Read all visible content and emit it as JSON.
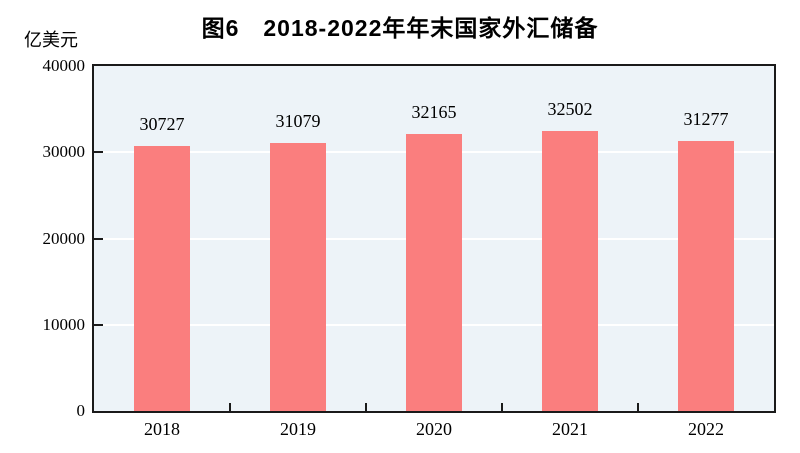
{
  "figure": {
    "title": "图6　2018-2022年年末国家外汇储备",
    "unit_label": "亿美元"
  },
  "chart_data": {
    "type": "bar",
    "title": "图6　2018-2022年年末国家外汇储备",
    "xlabel": "",
    "ylabel": "亿美元",
    "categories": [
      "2018",
      "2019",
      "2020",
      "2021",
      "2022"
    ],
    "values": [
      30727,
      31079,
      32165,
      32502,
      31277
    ],
    "data_labels": [
      "30727",
      "31079",
      "32165",
      "32502",
      "31277"
    ],
    "ylim": [
      0,
      40000
    ],
    "yticks": [
      0,
      10000,
      20000,
      30000,
      40000
    ],
    "ytick_labels": [
      "0",
      "10000",
      "20000",
      "30000",
      "40000"
    ],
    "grid": "horizontal gridlines at each ytick, white, drawn behind bars",
    "legend_position": "none",
    "colors": {
      "bar": "#FA7E7E",
      "plot_background": "#EDF3F8",
      "plot_border": "#1A1A1A",
      "gridline": "#FFFFFF",
      "text": "#000000"
    }
  }
}
